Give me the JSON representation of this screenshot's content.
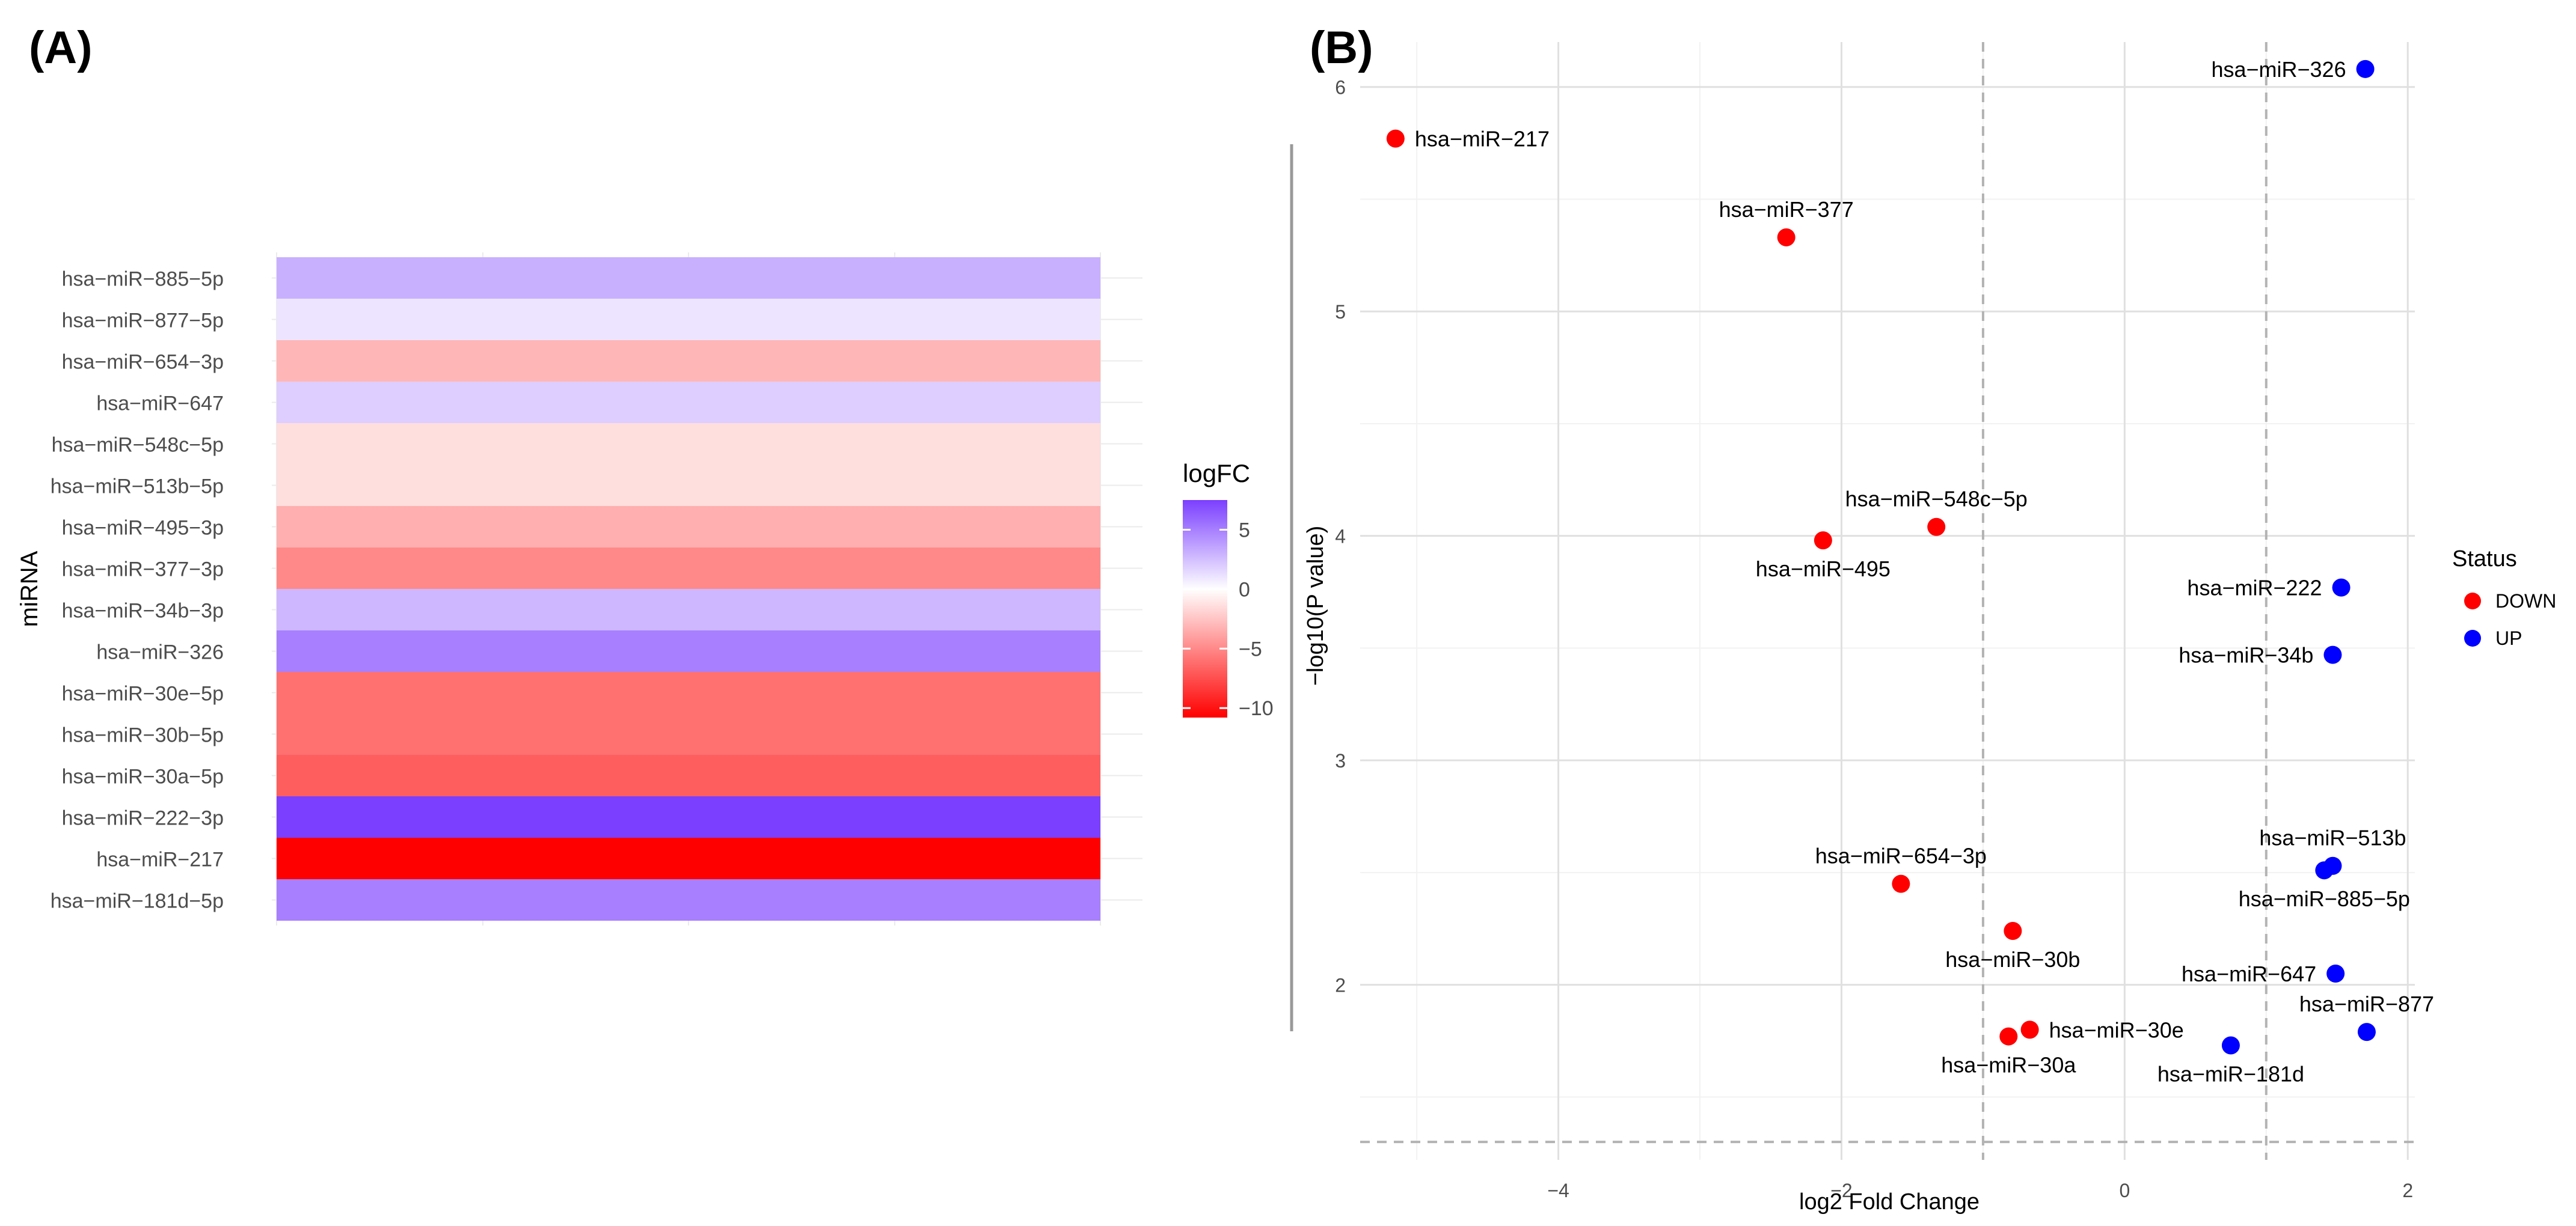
{
  "panels": {
    "a_label": "(A)",
    "b_label": "(B)"
  },
  "chart_data": [
    {
      "type": "heatmap",
      "panel": "(A)",
      "ylabel": "miRNA",
      "xlabel": "",
      "legend": {
        "title": "logFC",
        "ticks": [
          5,
          0,
          -5,
          -10
        ],
        "range": [
          -10.8,
          7.5
        ],
        "low_color": "#ff0000",
        "mid_color": "#ffffff",
        "high_color": "#7b3fff",
        "placement": "right"
      },
      "rows": [
        {
          "label": "hsa−miR−885−5p",
          "value": 3.1
        },
        {
          "label": "hsa−miR−877−5p",
          "value": 1.0
        },
        {
          "label": "hsa−miR−654−3p",
          "value": -3.1
        },
        {
          "label": "hsa−miR−647",
          "value": 1.9
        },
        {
          "label": "hsa−miR−548c−5p",
          "value": -1.4
        },
        {
          "label": "hsa−miR−513b−5p",
          "value": -1.4
        },
        {
          "label": "hsa−miR−495−3p",
          "value": -3.4
        },
        {
          "label": "hsa−miR−377−3p",
          "value": -5.0
        },
        {
          "label": "hsa−miR−34b−3p",
          "value": 2.8
        },
        {
          "label": "hsa−miR−326",
          "value": 5.0
        },
        {
          "label": "hsa−miR−30e−5p",
          "value": -6.0
        },
        {
          "label": "hsa−miR−30b−5p",
          "value": -6.0
        },
        {
          "label": "hsa−miR−30a−5p",
          "value": -6.8
        },
        {
          "label": "hsa−miR−222−3p",
          "value": 7.5
        },
        {
          "label": "hsa−miR−217",
          "value": -10.8
        },
        {
          "label": "hsa−miR−181d−5p",
          "value": 5.0
        }
      ]
    },
    {
      "type": "scatter",
      "panel": "(B)",
      "xlabel": "log2 Fold Change",
      "ylabel": "−log10(P value)",
      "xlim": [
        -5.4,
        2.05
      ],
      "ylim": [
        1.22,
        6.2
      ],
      "xticks": [
        -4,
        -2,
        0,
        2
      ],
      "xtick_labels": [
        "−4",
        "−2",
        "0",
        "2"
      ],
      "yticks": [
        2,
        3,
        4,
        5,
        6
      ],
      "ytick_labels": [
        "2",
        "3",
        "4",
        "5",
        "6"
      ],
      "grid": true,
      "vlines": [
        -1,
        1
      ],
      "hline": 1.3,
      "legend": {
        "title": "Status",
        "placement": "right",
        "entries": [
          {
            "name": "DOWN",
            "color": "#ff0000"
          },
          {
            "name": "UP",
            "color": "#0000ff"
          }
        ]
      },
      "points": [
        {
          "label": "hsa−miR−326",
          "x": 1.7,
          "y": 6.08,
          "status": "UP",
          "label_pos": "left"
        },
        {
          "label": "hsa−miR−217",
          "x": -5.15,
          "y": 5.77,
          "status": "DOWN",
          "label_pos": "right"
        },
        {
          "label": "hsa−miR−377",
          "x": -2.39,
          "y": 5.33,
          "status": "DOWN",
          "label_pos": "above"
        },
        {
          "label": "hsa−miR−548c−5p",
          "x": -1.33,
          "y": 4.04,
          "status": "DOWN",
          "label_pos": "above"
        },
        {
          "label": "hsa−miR−495",
          "x": -2.13,
          "y": 3.98,
          "status": "DOWN",
          "label_pos": "below"
        },
        {
          "label": "hsa−miR−222",
          "x": 1.53,
          "y": 3.77,
          "status": "UP",
          "label_pos": "left"
        },
        {
          "label": "hsa−miR−34b",
          "x": 1.47,
          "y": 3.47,
          "status": "UP",
          "label_pos": "left"
        },
        {
          "label": "hsa−miR−513b",
          "x": 1.47,
          "y": 2.53,
          "status": "UP",
          "label_pos": "above"
        },
        {
          "label": "hsa−miR−885−5p",
          "x": 1.41,
          "y": 2.51,
          "status": "UP",
          "label_pos": "below"
        },
        {
          "label": "hsa−miR−654−3p",
          "x": -1.58,
          "y": 2.45,
          "status": "DOWN",
          "label_pos": "above"
        },
        {
          "label": "hsa−miR−30b",
          "x": -0.79,
          "y": 2.24,
          "status": "DOWN",
          "label_pos": "below"
        },
        {
          "label": "hsa−miR−647",
          "x": 1.49,
          "y": 2.05,
          "status": "UP",
          "label_pos": "left"
        },
        {
          "label": "hsa−miR−877",
          "x": 1.71,
          "y": 1.79,
          "status": "UP",
          "label_pos": "above"
        },
        {
          "label": "hsa−miR−30e",
          "x": -0.67,
          "y": 1.8,
          "status": "DOWN",
          "label_pos": "right"
        },
        {
          "label": "hsa−miR−30a",
          "x": -0.82,
          "y": 1.77,
          "status": "DOWN",
          "label_pos": "below"
        },
        {
          "label": "hsa−miR−181d",
          "x": 0.75,
          "y": 1.73,
          "status": "UP",
          "label_pos": "below"
        }
      ]
    }
  ]
}
